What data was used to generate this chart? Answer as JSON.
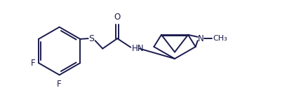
{
  "line_color": "#1a1a4e",
  "bg_color": "#ffffff",
  "figsize": [
    4.09,
    1.46
  ],
  "dpi": 100,
  "line_width": 1.4,
  "font_size": 8.5,
  "xlim": [
    0,
    10.5
  ],
  "ylim": [
    0,
    3.8
  ]
}
